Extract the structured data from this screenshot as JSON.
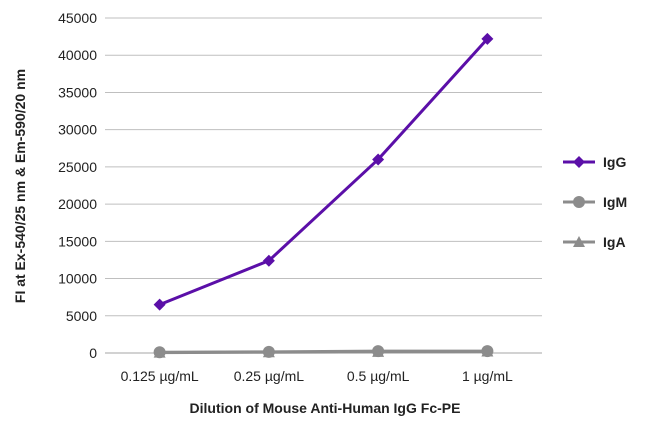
{
  "chart_data": {
    "type": "line",
    "title": "",
    "xlabel": "Dilution of Mouse Anti-Human IgG Fc-PE",
    "ylabel": "FI at Ex-540/25 nm & Em-590/20 nm",
    "categories": [
      "0.125 µg/mL",
      "0.25 µg/mL",
      "0.5 µg/mL",
      "1 µg/mL"
    ],
    "ylim": [
      0,
      45000
    ],
    "yticks": [
      0,
      5000,
      10000,
      15000,
      20000,
      25000,
      30000,
      35000,
      40000,
      45000
    ],
    "grid": true,
    "legend_position": "right",
    "series": [
      {
        "name": "IgG",
        "values": [
          6500,
          12400,
          26000,
          42200
        ],
        "color": "#5b0fa8",
        "marker": "diamond"
      },
      {
        "name": "IgM",
        "values": [
          100,
          150,
          250,
          250
        ],
        "color": "#8c8c8c",
        "marker": "circle"
      },
      {
        "name": "IgA",
        "values": [
          50,
          100,
          150,
          200
        ],
        "color": "#8c8c8c",
        "marker": "triangle"
      }
    ]
  }
}
